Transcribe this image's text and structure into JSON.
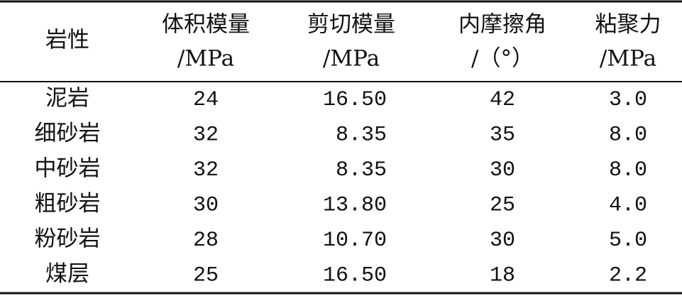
{
  "table": {
    "header": [
      {
        "name": "岩性"
      },
      {
        "name": "体积模量",
        "unit": "/MPa"
      },
      {
        "name": "剪切模量",
        "unit": "/MPa"
      },
      {
        "name": "内摩擦角",
        "unit": "/（°）"
      },
      {
        "name": "粘聚力",
        "unit": "/MPa"
      }
    ],
    "rows": [
      [
        "泥岩",
        "24",
        "16.50",
        "42",
        "3.0"
      ],
      [
        "细砂岩",
        "32",
        "8.35",
        "35",
        "8.0"
      ],
      [
        "中砂岩",
        "32",
        "8.35",
        "30",
        "8.0"
      ],
      [
        "粗砂岩",
        "30",
        "13.80",
        "25",
        "4.0"
      ],
      [
        "粉砂岩",
        "28",
        "10.70",
        "30",
        "5.0"
      ],
      [
        "煤层",
        "25",
        "16.50",
        "18",
        "2.2"
      ]
    ]
  }
}
